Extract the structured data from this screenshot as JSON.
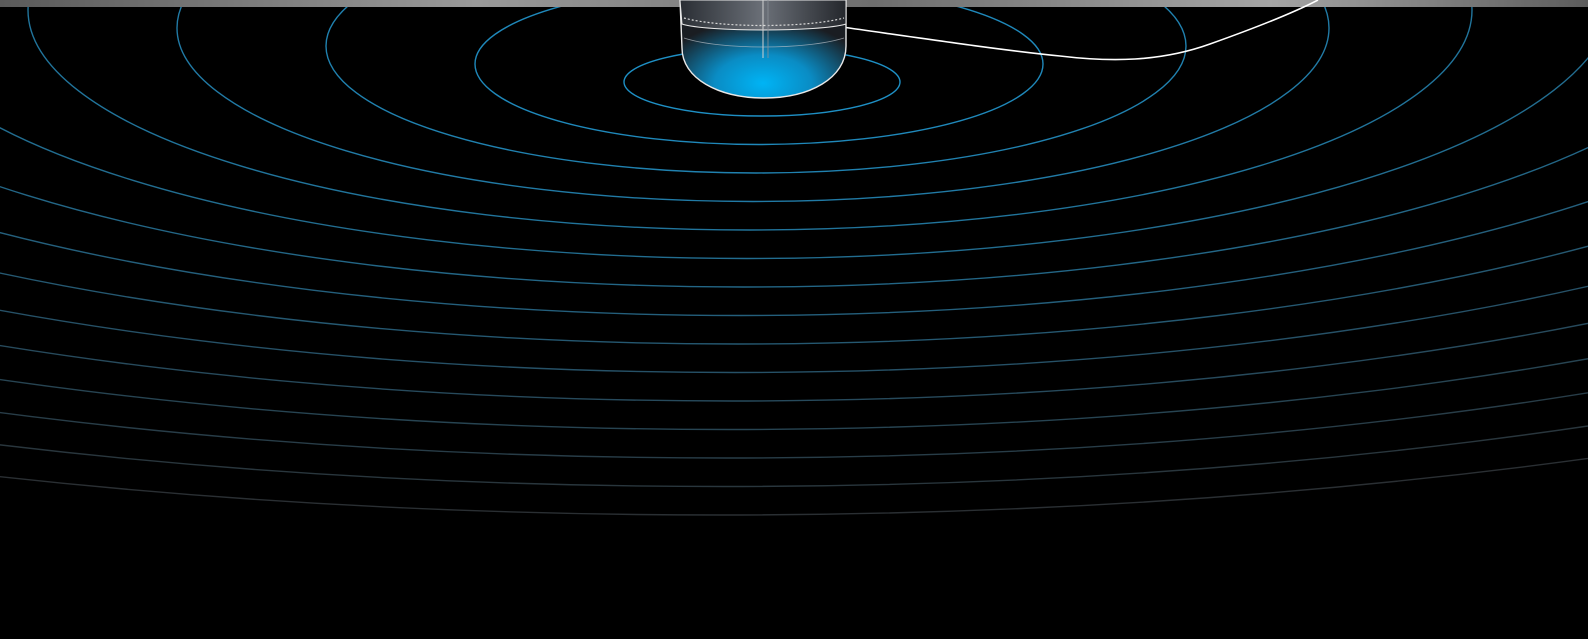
{
  "scene": {
    "subject": "transducer-icon",
    "background_color": "#000000",
    "water_surface_color": "#8a8a8a",
    "sonar_ring_color": "#1e8fc4",
    "sonar_ring_fade_color": "#2a2f33",
    "transducer_glow_color": "#00a6e8",
    "cable_color": "#ffffff",
    "ring_count": 15
  }
}
